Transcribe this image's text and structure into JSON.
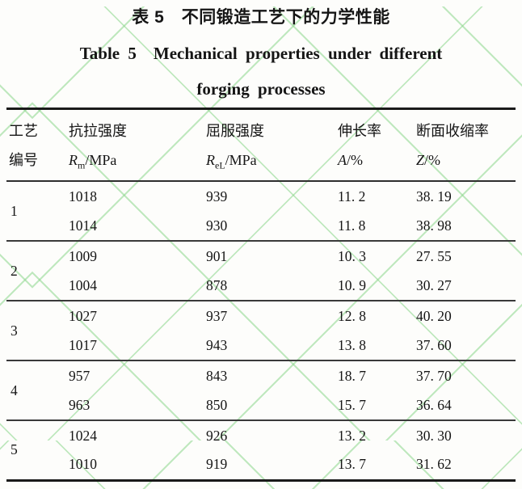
{
  "colors": {
    "watermark_green": "#8cd68c",
    "rule_color": "#1a1a1a",
    "text_color": "#151515",
    "background": "#fdfdfb"
  },
  "titles": {
    "zh": "表 5　不同锻造工艺下的力学性能",
    "en_line1": "Table 5　Mechanical properties under different",
    "en_line2": "forging processes"
  },
  "table": {
    "header": {
      "col1_line1": "工艺",
      "col1_line2": "编号",
      "col2_line1": "抗拉强度",
      "col2_sym": "R",
      "col2_sub": "m",
      "col2_unit": "/MPa",
      "col3_line1": "屈服强度",
      "col3_sym": "R",
      "col3_sub": "eL",
      "col3_unit": "/MPa",
      "col4_line1": "伸长率",
      "col4_sym": "A",
      "col4_unit": "/%",
      "col5_line1": "断面收缩率",
      "col5_sym": "Z",
      "col5_unit": "/%"
    },
    "groups": [
      {
        "id": "1",
        "rows": [
          [
            "1018",
            "939",
            "11. 2",
            "38. 19"
          ],
          [
            "1014",
            "930",
            "11. 8",
            "38. 98"
          ]
        ]
      },
      {
        "id": "2",
        "rows": [
          [
            "1009",
            "901",
            "10. 3",
            "27. 55"
          ],
          [
            "1004",
            "878",
            "10. 9",
            "30. 27"
          ]
        ]
      },
      {
        "id": "3",
        "rows": [
          [
            "1027",
            "937",
            "12. 8",
            "40. 20"
          ],
          [
            "1017",
            "943",
            "13. 8",
            "37. 60"
          ]
        ]
      },
      {
        "id": "4",
        "rows": [
          [
            "957",
            "843",
            "18. 7",
            "37. 70"
          ],
          [
            "963",
            "850",
            "15. 7",
            "36. 64"
          ]
        ]
      },
      {
        "id": "5",
        "rows": [
          [
            "1024",
            "926",
            "13. 2",
            "30. 30"
          ],
          [
            "1010",
            "919",
            "13. 7",
            "31. 62"
          ]
        ]
      }
    ]
  },
  "chart_data": {
    "type": "table",
    "title": "表5 不同锻造工艺下的力学性能 / Table 5 Mechanical properties under different forging processes",
    "columns": [
      "工艺编号",
      "抗拉强度 Rm/MPa",
      "屈服强度 ReL/MPa",
      "伸长率 A/%",
      "断面收缩率 Z/%"
    ],
    "rows": [
      [
        1,
        1018,
        939,
        11.2,
        38.19
      ],
      [
        1,
        1014,
        930,
        11.8,
        38.98
      ],
      [
        2,
        1009,
        901,
        10.3,
        27.55
      ],
      [
        2,
        1004,
        878,
        10.9,
        30.27
      ],
      [
        3,
        1027,
        937,
        12.8,
        40.2
      ],
      [
        3,
        1017,
        943,
        13.8,
        37.6
      ],
      [
        4,
        957,
        843,
        18.7,
        37.7
      ],
      [
        4,
        963,
        850,
        15.7,
        36.64
      ],
      [
        5,
        1024,
        926,
        13.2,
        30.3
      ],
      [
        5,
        1010,
        919,
        13.7,
        31.62
      ]
    ]
  }
}
